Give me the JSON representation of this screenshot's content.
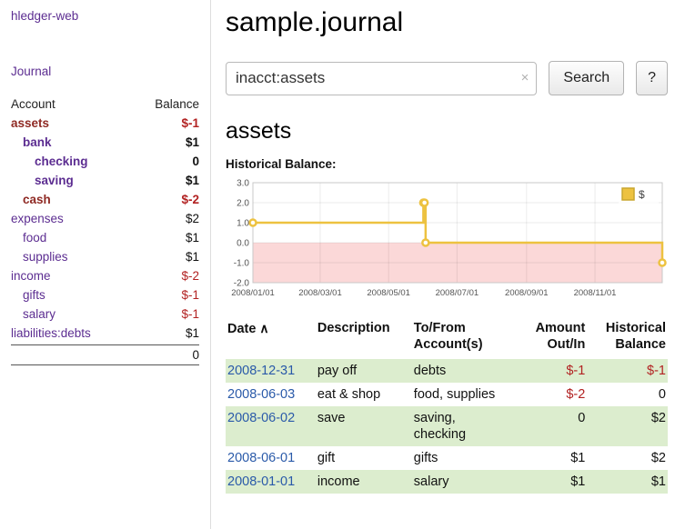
{
  "app": {
    "title": "hledger-web",
    "nav_journal": "Journal"
  },
  "sidebar": {
    "header": {
      "account": "Account",
      "balance": "Balance"
    },
    "accounts": [
      {
        "name": "assets",
        "indent": 0,
        "balance": "$-1",
        "bold": true,
        "name_style": "neg"
      },
      {
        "name": "bank",
        "indent": 1,
        "balance": "$1",
        "bold": true,
        "name_style": "link"
      },
      {
        "name": "checking",
        "indent": 2,
        "balance": "0",
        "bold": true,
        "name_style": "link"
      },
      {
        "name": "saving",
        "indent": 2,
        "balance": "$1",
        "bold": true,
        "name_style": "link"
      },
      {
        "name": "cash",
        "indent": 1,
        "balance": "$-2",
        "bold": true,
        "name_style": "neg"
      },
      {
        "name": "expenses",
        "indent": 0,
        "balance": "$2",
        "bold": false,
        "name_style": "link"
      },
      {
        "name": "food",
        "indent": 1,
        "balance": "$1",
        "bold": false,
        "name_style": "link"
      },
      {
        "name": "supplies",
        "indent": 1,
        "balance": "$1",
        "bold": false,
        "name_style": "link"
      },
      {
        "name": "income",
        "indent": 0,
        "balance": "$-2",
        "bold": false,
        "name_style": "link"
      },
      {
        "name": "gifts",
        "indent": 1,
        "balance": "$-1",
        "bold": false,
        "name_style": "link"
      },
      {
        "name": "salary",
        "indent": 1,
        "balance": "$-1",
        "bold": false,
        "name_style": "link"
      },
      {
        "name": "liabilities:debts",
        "indent": 0,
        "balance": "$1",
        "bold": false,
        "name_style": "link"
      }
    ],
    "total": "0"
  },
  "main": {
    "title": "sample.journal",
    "search": {
      "value": "inacct:assets",
      "clear": "×",
      "button": "Search",
      "help": "?"
    },
    "heading": "assets",
    "chart_title": "Historical Balance:"
  },
  "chart_data": {
    "type": "line",
    "title": "Historical Balance",
    "x_range": [
      "2008-01-01",
      "2008-12-31"
    ],
    "x_ticks": [
      "2008/01/01",
      "2008/03/01",
      "2008/05/01",
      "2008/07/01",
      "2008/09/01",
      "2008/11/01"
    ],
    "y_ticks": [
      3.0,
      2.0,
      1.0,
      0.0,
      -1.0,
      -2.0
    ],
    "ylim": [
      -2,
      3
    ],
    "legend": [
      {
        "label": "$",
        "color": "#edc240"
      }
    ],
    "negative_region_color": "#fbd8d8",
    "series": [
      {
        "name": "$",
        "color": "#edc240",
        "step": true,
        "points": [
          [
            "2008-01-01",
            1
          ],
          [
            "2008-06-01",
            2
          ],
          [
            "2008-06-02",
            2
          ],
          [
            "2008-06-03",
            0
          ],
          [
            "2008-12-31",
            -1
          ]
        ]
      }
    ]
  },
  "register": {
    "columns": [
      [
        "Date"
      ],
      [
        "Description"
      ],
      [
        "To/From",
        "Account(s)"
      ],
      [
        "Amount",
        "Out/In"
      ],
      [
        "Historical",
        "Balance"
      ]
    ],
    "sort_icon": "∧",
    "rows": [
      {
        "date": "2008-12-31",
        "description": "pay off",
        "accounts": "debts",
        "amount": "$-1",
        "balance": "$-1"
      },
      {
        "date": "2008-06-03",
        "description": "eat & shop",
        "accounts": "food, supplies",
        "amount": "$-2",
        "balance": "0"
      },
      {
        "date": "2008-06-02",
        "description": "save",
        "accounts": "saving,\nchecking",
        "amount": "0",
        "balance": "$2"
      },
      {
        "date": "2008-06-01",
        "description": "gift",
        "accounts": "gifts",
        "amount": "$1",
        "balance": "$2"
      },
      {
        "date": "2008-01-01",
        "description": "income",
        "accounts": "salary",
        "amount": "$1",
        "balance": "$1"
      }
    ]
  }
}
